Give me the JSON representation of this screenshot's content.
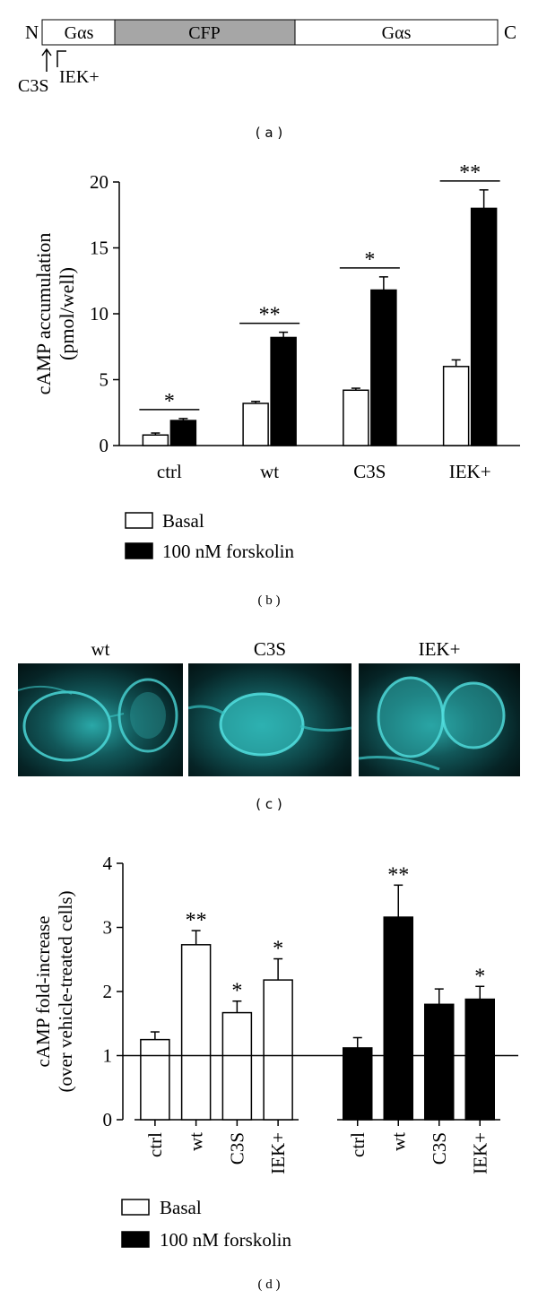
{
  "panel_a": {
    "label": "( a )",
    "n_label": "N",
    "c_label": "C",
    "segments": [
      {
        "text": "Gαs",
        "fill": "#ffffff"
      },
      {
        "text": "CFP",
        "fill": "#a6a6a6"
      },
      {
        "text": "Gαs",
        "fill": "#ffffff"
      }
    ],
    "markers": [
      "C3S",
      "IEK+"
    ]
  },
  "panel_c": {
    "label": "( c )",
    "images": [
      {
        "title": "wt"
      },
      {
        "title": "C3S"
      },
      {
        "title": "IEK+"
      }
    ]
  },
  "chart_data": [
    {
      "type": "bar",
      "panel_label": "( b )",
      "ylabel_line1": "cAMP accumulation",
      "ylabel_line2": "(pmol/well)",
      "ylim": [
        0,
        20
      ],
      "yticks": [
        0,
        5,
        10,
        15,
        20
      ],
      "categories": [
        "ctrl",
        "wt",
        "C3S",
        "IEK+"
      ],
      "series": [
        {
          "name": "Basal",
          "color": "#ffffff",
          "values": [
            0.8,
            3.2,
            4.2,
            6.0
          ],
          "errors": [
            0.15,
            0.15,
            0.15,
            0.5
          ]
        },
        {
          "name": "100 nM forskolin",
          "color": "#000000",
          "values": [
            1.9,
            8.2,
            11.8,
            18.0
          ],
          "errors": [
            0.15,
            0.4,
            1.0,
            1.4
          ]
        }
      ],
      "significance": [
        "*",
        "**",
        "*",
        "**"
      ],
      "legend": [
        "Basal",
        "100 nM forskolin"
      ]
    },
    {
      "type": "bar",
      "panel_label": "( d )",
      "ylabel_line1": "cAMP fold-increase",
      "ylabel_line2": "(over vehicle-treated cells)",
      "ylim": [
        0,
        4
      ],
      "yticks": [
        0,
        1,
        2,
        3,
        4
      ],
      "reference_line": 1,
      "groups": [
        {
          "name": "Basal",
          "color": "#ffffff",
          "categories": [
            "ctrl",
            "wt",
            "C3S",
            "IEK+"
          ],
          "values": [
            1.25,
            2.73,
            1.67,
            2.18
          ],
          "errors": [
            0.12,
            0.22,
            0.18,
            0.33
          ],
          "significance": [
            "",
            "**",
            "*",
            "*"
          ]
        },
        {
          "name": "100 nM forskolin",
          "color": "#000000",
          "categories": [
            "ctrl",
            "wt",
            "C3S",
            "IEK+"
          ],
          "values": [
            1.12,
            3.16,
            1.8,
            1.88
          ],
          "errors": [
            0.16,
            0.5,
            0.24,
            0.2
          ],
          "significance": [
            "",
            "**",
            "",
            "*"
          ]
        }
      ],
      "legend": [
        "Basal",
        "100 nM forskolin"
      ]
    }
  ]
}
